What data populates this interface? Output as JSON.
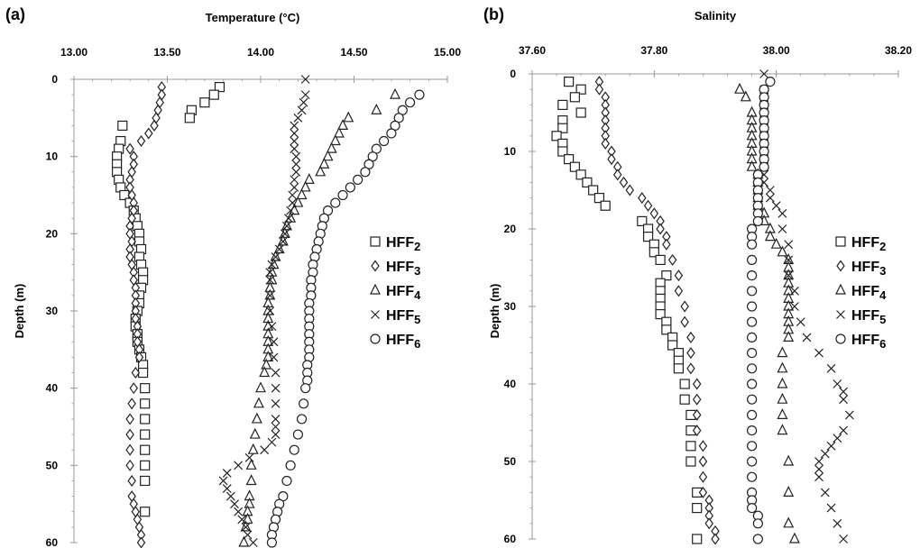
{
  "panels": [
    {
      "label": "(a)",
      "xlabel": "Temperature (°C)",
      "ylabel": "Depth (m)",
      "xlim": [
        13.0,
        15.0
      ],
      "ylim": [
        0,
        60
      ],
      "xticks": [
        "13.00",
        "13.50",
        "14.00",
        "14.50",
        "15.00"
      ],
      "yticks": [
        "0",
        "10",
        "20",
        "30",
        "40",
        "50",
        "60"
      ]
    },
    {
      "label": "(b)",
      "xlabel": "Salinity",
      "ylabel": "Depth (m)",
      "xlim": [
        37.6,
        38.2
      ],
      "ylim": [
        0,
        60
      ],
      "xticks": [
        "37.60",
        "37.80",
        "38.00",
        "38.20"
      ],
      "yticks": [
        "0",
        "10",
        "20",
        "30",
        "40",
        "50",
        "60"
      ]
    }
  ],
  "legend": [
    {
      "base": "HFF",
      "sub": "2",
      "marker": "square"
    },
    {
      "base": "HFF",
      "sub": "3",
      "marker": "diamond"
    },
    {
      "base": "HFF",
      "sub": "4",
      "marker": "triangle"
    },
    {
      "base": "HFF",
      "sub": "5",
      "marker": "cross"
    },
    {
      "base": "HFF",
      "sub": "6",
      "marker": "circle"
    }
  ],
  "colors": {
    "marker": "#222222",
    "axis": "#999999"
  },
  "chart_data": [
    {
      "type": "scatter",
      "title": "Temperature (°C)",
      "xlabel": "Temperature (°C)",
      "ylabel": "Depth (m)",
      "xlim": [
        13.0,
        15.0
      ],
      "ylim": [
        60,
        0
      ],
      "series": [
        {
          "name": "HFF2",
          "marker": "square",
          "x": [
            13.78,
            13.75,
            13.7,
            13.63,
            13.62,
            13.26,
            13.25,
            13.24,
            13.23,
            13.23,
            13.23,
            13.24,
            13.25,
            13.27,
            13.3,
            13.32,
            13.33,
            13.34,
            13.35,
            13.35,
            13.36,
            13.35,
            13.36,
            13.37,
            13.37,
            13.36,
            13.35,
            13.35,
            13.34,
            13.33,
            13.33,
            13.34,
            13.34,
            13.35,
            13.36,
            13.37,
            13.37,
            13.38,
            13.38,
            13.38,
            13.38,
            13.38,
            13.38,
            13.38,
            13.38
          ],
          "y": [
            1,
            2,
            3,
            4,
            5,
            6,
            8,
            9,
            10,
            11,
            12,
            13,
            14,
            15,
            16,
            17,
            18,
            19,
            20,
            21,
            22,
            23,
            24,
            25,
            26,
            27,
            28,
            29,
            30,
            31,
            32,
            33,
            34,
            35,
            36,
            37,
            38,
            40,
            42,
            44,
            46,
            48,
            50,
            52,
            56
          ]
        },
        {
          "name": "HFF3",
          "marker": "diamond",
          "x": [
            13.47,
            13.47,
            13.46,
            13.45,
            13.44,
            13.43,
            13.4,
            13.36,
            13.3,
            13.32,
            13.32,
            13.31,
            13.3,
            13.3,
            13.31,
            13.32,
            13.32,
            13.31,
            13.3,
            13.3,
            13.31,
            13.3,
            13.3,
            13.31,
            13.32,
            13.32,
            13.33,
            13.33,
            13.33,
            13.33,
            13.33,
            13.34,
            13.34,
            13.34,
            13.35,
            13.35,
            13.33,
            13.32,
            13.31,
            13.3,
            13.3,
            13.3,
            13.3,
            13.31,
            13.31,
            13.32,
            13.33,
            13.34,
            13.35,
            13.36,
            13.36
          ],
          "y": [
            1,
            2,
            3,
            4,
            5,
            6,
            7,
            8,
            9,
            10,
            11,
            12,
            13,
            14,
            15,
            16,
            17,
            18,
            19,
            20,
            21,
            22,
            23,
            24,
            25,
            26,
            27,
            28,
            29,
            30,
            31,
            32,
            33,
            34,
            35,
            36,
            38,
            40,
            42,
            44,
            46,
            48,
            50,
            52,
            54,
            55,
            56,
            57,
            58,
            59,
            60
          ]
        },
        {
          "name": "HFF4",
          "marker": "triangle",
          "x": [
            14.72,
            14.62,
            14.47,
            14.44,
            14.42,
            14.4,
            14.38,
            14.36,
            14.34,
            14.32,
            14.26,
            14.24,
            14.22,
            14.2,
            14.18,
            14.16,
            14.14,
            14.13,
            14.12,
            14.1,
            14.08,
            14.07,
            14.06,
            14.06,
            14.05,
            14.05,
            14.04,
            14.04,
            14.04,
            14.04,
            14.04,
            14.04,
            14.04,
            14.04,
            14.03,
            14.02,
            14.0,
            13.99,
            13.98,
            13.97,
            13.96,
            13.95,
            13.95,
            13.94,
            13.94,
            13.93,
            13.93,
            13.92,
            13.91
          ],
          "y": [
            2,
            4,
            5,
            6,
            7,
            8,
            9,
            10,
            11,
            12,
            13,
            14,
            15,
            16,
            17,
            18,
            19,
            20,
            21,
            22,
            23,
            24,
            25,
            26,
            27,
            28,
            29,
            30,
            31,
            32,
            33,
            34,
            35,
            36,
            37,
            38,
            40,
            42,
            44,
            46,
            48,
            50,
            52,
            54,
            55,
            56,
            57,
            58,
            60
          ]
        },
        {
          "name": "HFF5",
          "marker": "cross",
          "x": [
            14.24,
            14.24,
            14.23,
            14.22,
            14.2,
            14.18,
            14.18,
            14.18,
            14.18,
            14.19,
            14.19,
            14.19,
            14.18,
            14.18,
            14.17,
            14.17,
            14.16,
            14.15,
            14.14,
            14.13,
            14.12,
            14.1,
            14.08,
            14.06,
            14.05,
            14.05,
            14.05,
            14.05,
            14.06,
            14.07,
            14.07,
            14.08,
            14.08,
            14.08,
            14.08,
            14.08,
            14.08,
            14.06,
            14.02,
            13.94,
            13.88,
            13.82,
            13.8,
            13.82,
            13.84,
            13.86,
            13.88,
            13.9,
            13.92,
            13.93,
            13.96
          ],
          "y": [
            0,
            2,
            3,
            4,
            5,
            6,
            7,
            8,
            9,
            10,
            11,
            12,
            13,
            14,
            15,
            16,
            17,
            18,
            19,
            20,
            21,
            22,
            23,
            24,
            25,
            26,
            28,
            30,
            32,
            34,
            36,
            38,
            40,
            42,
            44,
            45,
            46,
            47,
            48,
            49,
            50,
            51,
            52,
            53,
            54,
            55,
            56,
            57,
            58,
            59,
            60
          ]
        },
        {
          "name": "HFF6",
          "marker": "circle",
          "x": [
            14.85,
            14.8,
            14.76,
            14.74,
            14.72,
            14.7,
            14.66,
            14.62,
            14.6,
            14.58,
            14.56,
            14.52,
            14.48,
            14.44,
            14.4,
            14.36,
            14.34,
            14.33,
            14.32,
            14.31,
            14.3,
            14.29,
            14.28,
            14.28,
            14.27,
            14.27,
            14.27,
            14.26,
            14.26,
            14.26,
            14.26,
            14.26,
            14.26,
            14.26,
            14.26,
            14.25,
            14.25,
            14.25,
            14.24,
            14.23,
            14.22,
            14.2,
            14.18,
            14.16,
            14.14,
            14.12,
            14.1,
            14.09,
            14.08,
            14.07,
            14.06,
            14.06
          ],
          "y": [
            2,
            3,
            4,
            5,
            6,
            7,
            8,
            9,
            10,
            11,
            12,
            13,
            14,
            15,
            16,
            17,
            18,
            19,
            20,
            21,
            22,
            23,
            24,
            25,
            26,
            27,
            28,
            29,
            30,
            31,
            32,
            33,
            34,
            35,
            36,
            37,
            38,
            39,
            40,
            42,
            44,
            46,
            48,
            50,
            52,
            54,
            55,
            56,
            57,
            58,
            59,
            60
          ]
        }
      ]
    },
    {
      "type": "scatter",
      "title": "Salinity",
      "xlabel": "Salinity",
      "ylabel": "Depth (m)",
      "xlim": [
        37.6,
        38.2
      ],
      "ylim": [
        60,
        0
      ],
      "series": [
        {
          "name": "HFF2",
          "marker": "square",
          "x": [
            37.66,
            37.68,
            37.67,
            37.65,
            37.68,
            37.65,
            37.65,
            37.64,
            37.65,
            37.65,
            37.66,
            37.67,
            37.68,
            37.69,
            37.7,
            37.71,
            37.72,
            37.78,
            37.79,
            37.79,
            37.8,
            37.8,
            37.81,
            37.82,
            37.81,
            37.81,
            37.81,
            37.81,
            37.81,
            37.82,
            37.82,
            37.83,
            37.83,
            37.84,
            37.84,
            37.84,
            37.85,
            37.85,
            37.86,
            37.86,
            37.86,
            37.86,
            37.87,
            37.87,
            37.87
          ],
          "y": [
            1,
            2,
            3,
            4,
            5,
            6,
            7,
            8,
            9,
            10,
            11,
            12,
            13,
            14,
            15,
            16,
            17,
            19,
            20,
            21,
            22,
            23,
            24,
            26,
            27,
            28,
            29,
            30,
            31,
            32,
            33,
            34,
            35,
            36,
            37,
            38,
            40,
            42,
            44,
            46,
            48,
            50,
            54,
            56,
            60
          ]
        },
        {
          "name": "HFF3",
          "marker": "diamond",
          "x": [
            37.71,
            37.71,
            37.72,
            37.72,
            37.72,
            37.72,
            37.72,
            37.72,
            37.72,
            37.73,
            37.73,
            37.74,
            37.74,
            37.75,
            37.76,
            37.78,
            37.79,
            37.8,
            37.81,
            37.81,
            37.82,
            37.82,
            37.83,
            37.84,
            37.84,
            37.85,
            37.85,
            37.86,
            37.86,
            37.86,
            37.87,
            37.87,
            37.87,
            37.87,
            37.88,
            37.88,
            37.88,
            37.88,
            37.89,
            37.89,
            37.89,
            37.89,
            37.9,
            37.9
          ],
          "y": [
            1,
            2,
            3,
            4,
            5,
            6,
            7,
            8,
            9,
            10,
            11,
            12,
            13,
            14,
            15,
            16,
            17,
            18,
            19,
            20,
            21,
            22,
            24,
            26,
            28,
            30,
            32,
            34,
            36,
            38,
            40,
            42,
            44,
            46,
            48,
            50,
            52,
            54,
            55,
            56,
            57,
            58,
            59,
            60
          ]
        },
        {
          "name": "HFF4",
          "marker": "triangle",
          "x": [
            37.94,
            37.95,
            37.96,
            37.96,
            37.96,
            37.96,
            37.96,
            37.96,
            37.96,
            37.96,
            37.97,
            37.97,
            37.97,
            37.97,
            37.97,
            37.98,
            37.98,
            37.99,
            37.99,
            38.0,
            38.01,
            38.02,
            38.02,
            38.02,
            38.02,
            38.02,
            38.02,
            38.02,
            38.02,
            38.02,
            38.02,
            38.02,
            38.01,
            38.01,
            38.01,
            38.01,
            38.01,
            38.01,
            38.02,
            38.02,
            38.02,
            38.03
          ],
          "y": [
            2,
            3,
            5,
            6,
            7,
            8,
            9,
            10,
            11,
            12,
            13,
            14,
            15,
            16,
            17,
            18,
            19,
            20,
            21,
            22,
            23,
            24,
            25,
            26,
            27,
            28,
            29,
            30,
            31,
            32,
            33,
            34,
            36,
            38,
            40,
            42,
            44,
            46,
            50,
            54,
            58,
            60
          ]
        },
        {
          "name": "HFF5",
          "marker": "cross",
          "x": [
            37.98,
            37.98,
            37.98,
            37.98,
            37.98,
            37.98,
            37.98,
            37.98,
            37.98,
            37.98,
            37.98,
            37.98,
            37.98,
            37.98,
            37.99,
            37.99,
            38.0,
            38.01,
            38.01,
            38.02,
            38.02,
            38.02,
            38.03,
            38.03,
            38.04,
            38.05,
            38.07,
            38.09,
            38.1,
            38.11,
            38.11,
            38.12,
            38.11,
            38.1,
            38.09,
            38.08,
            38.07,
            38.07,
            38.07,
            38.08,
            38.09,
            38.1,
            38.11
          ],
          "y": [
            0,
            2,
            3,
            4,
            5,
            6,
            7,
            8,
            9,
            10,
            11,
            12,
            13,
            14,
            15,
            16,
            17,
            18,
            20,
            22,
            24,
            26,
            28,
            30,
            32,
            34,
            36,
            38,
            40,
            41,
            42,
            44,
            46,
            47,
            48,
            49,
            50,
            51,
            52,
            54,
            56,
            58,
            60
          ]
        },
        {
          "name": "HFF6",
          "marker": "circle",
          "x": [
            37.99,
            37.98,
            37.98,
            37.98,
            37.98,
            37.98,
            37.98,
            37.98,
            37.98,
            37.98,
            37.98,
            37.98,
            37.97,
            37.97,
            37.97,
            37.97,
            37.97,
            37.97,
            37.97,
            37.96,
            37.96,
            37.96,
            37.96,
            37.96,
            37.96,
            37.96,
            37.96,
            37.96,
            37.96,
            37.96,
            37.96,
            37.96,
            37.96,
            37.96,
            37.96,
            37.96,
            37.96,
            37.96,
            37.96,
            37.96,
            37.97,
            37.97,
            37.97
          ],
          "y": [
            1,
            2,
            3,
            4,
            5,
            6,
            7,
            8,
            9,
            10,
            11,
            12,
            13,
            14,
            15,
            16,
            17,
            18,
            19,
            20,
            21,
            22,
            24,
            26,
            28,
            30,
            32,
            34,
            36,
            38,
            40,
            42,
            44,
            46,
            48,
            50,
            52,
            54,
            55,
            56,
            57,
            58,
            60
          ]
        }
      ]
    }
  ]
}
